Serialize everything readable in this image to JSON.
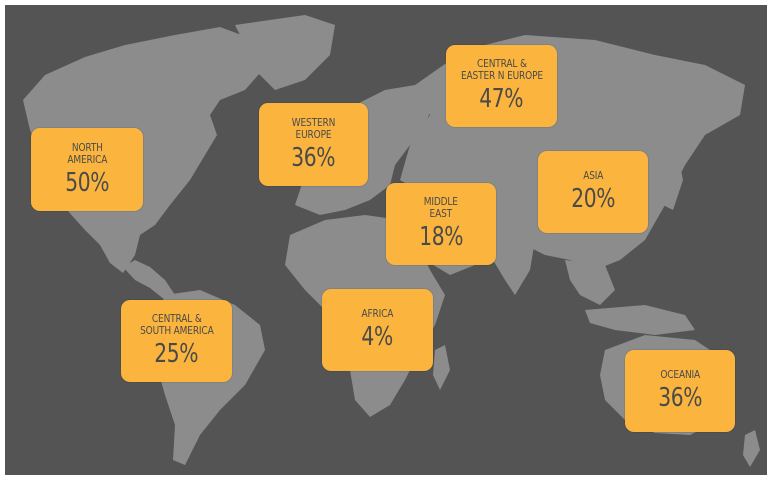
{
  "map": {
    "colors": {
      "ocean": "#545454",
      "land": "#8c8c8c",
      "callout": "#fbb53f",
      "text": "#4a4a4a"
    },
    "regions": [
      {
        "id": "north-america",
        "name": "NORTH\nAMERICA",
        "value": "50%"
      },
      {
        "id": "western-europe",
        "name": "WESTERN\nEUROPE",
        "value": "36%"
      },
      {
        "id": "central-eastern-europe",
        "name": "CENTRAL &\nEASTER N EUROPE",
        "value": "47%"
      },
      {
        "id": "middle-east",
        "name": "MIDDLE\nEAST",
        "value": "18%"
      },
      {
        "id": "asia",
        "name": "ASIA",
        "value": "20%"
      },
      {
        "id": "central-south-america",
        "name": "CENTRAL &\nSOUTH AMERICA",
        "value": "25%"
      },
      {
        "id": "africa",
        "name": "AFRICA",
        "value": "4%"
      },
      {
        "id": "oceania",
        "name": "OCEANIA",
        "value": "36%"
      }
    ]
  }
}
